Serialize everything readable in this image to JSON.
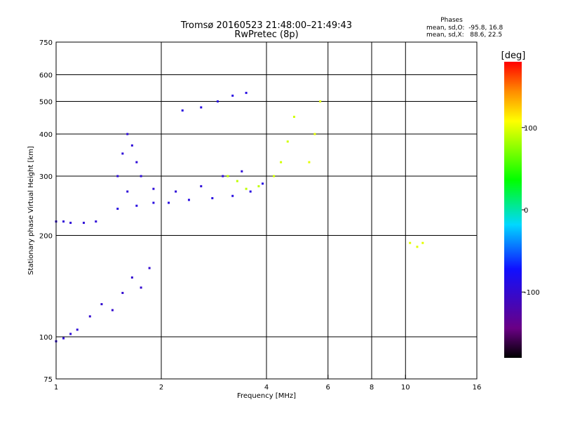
{
  "chart_data": {
    "type": "scatter",
    "title": "Tromsø 20160523 21:48:00–21:49:43",
    "subtitle": "RwPretec (8p)",
    "xlabel": "Frequency [MHz]",
    "ylabel": "Stationary phase Virtual Height [km]",
    "x_scale": "log",
    "y_scale": "log",
    "xlim": [
      1,
      16
    ],
    "ylim": [
      75,
      750
    ],
    "x_ticks": [
      1,
      2,
      4,
      6,
      8,
      10,
      16
    ],
    "y_ticks": [
      75,
      100,
      200,
      300,
      400,
      500,
      600,
      750
    ],
    "x_grid": [
      2,
      4,
      6,
      8,
      10
    ],
    "y_grid": [
      100,
      200,
      300,
      400,
      500,
      600
    ],
    "grid": true,
    "phase_stats": {
      "heading": "Phases",
      "line_O": "mean, sd,O:  -95.8, 16.8",
      "line_X": "mean, sd,X:   88.6, 22.5"
    },
    "colorbar": {
      "label": "[deg]",
      "range": [
        -180,
        180
      ],
      "ticks": [
        -100,
        0,
        100
      ],
      "scheme": "rainbow: black → purple → blue → cyan → green → yellow → orange → red"
    },
    "series": [
      {
        "x": [
          1.0,
          1.05,
          1.1,
          1.2,
          1.3
        ],
        "y": [
          220,
          220,
          218,
          218,
          220
        ],
        "phase": -95
      },
      {
        "x": [
          1.0,
          1.05,
          1.1,
          1.15
        ],
        "y": [
          97,
          99,
          102,
          105
        ],
        "phase": -95
      },
      {
        "x": [
          1.25,
          1.35,
          1.45,
          1.55,
          1.65,
          1.75,
          1.85
        ],
        "y": [
          115,
          125,
          120,
          135,
          150,
          140,
          160
        ],
        "phase": -100
      },
      {
        "x": [
          1.5,
          1.55,
          1.6,
          1.65,
          1.7,
          1.75
        ],
        "y": [
          300,
          350,
          400,
          370,
          330,
          300
        ],
        "phase": -95
      },
      {
        "x": [
          1.5,
          1.7,
          1.9,
          2.1,
          2.4,
          2.8,
          3.2,
          3.6,
          3.9
        ],
        "y": [
          240,
          245,
          250,
          250,
          255,
          258,
          262,
          270,
          285
        ],
        "phase": -90
      },
      {
        "x": [
          1.6,
          1.9,
          2.2,
          2.6,
          3.0,
          3.4
        ],
        "y": [
          270,
          275,
          270,
          280,
          300,
          310
        ],
        "phase": -95
      },
      {
        "x": [
          2.3,
          2.6,
          2.9,
          3.2,
          3.5
        ],
        "y": [
          470,
          480,
          500,
          520,
          530
        ],
        "phase": -90
      },
      {
        "x": [
          3.1,
          3.3,
          3.5,
          3.8
        ],
        "y": [
          300,
          290,
          275,
          280
        ],
        "phase": 90
      },
      {
        "x": [
          4.2,
          4.4,
          4.6,
          4.8
        ],
        "y": [
          300,
          330,
          380,
          450
        ],
        "phase": 95
      },
      {
        "x": [
          5.3,
          5.5,
          5.7
        ],
        "y": [
          330,
          400,
          500
        ],
        "phase": 100
      },
      {
        "x": [
          10.3,
          10.8,
          11.2
        ],
        "y": [
          190,
          185,
          190
        ],
        "phase": 100
      }
    ]
  }
}
